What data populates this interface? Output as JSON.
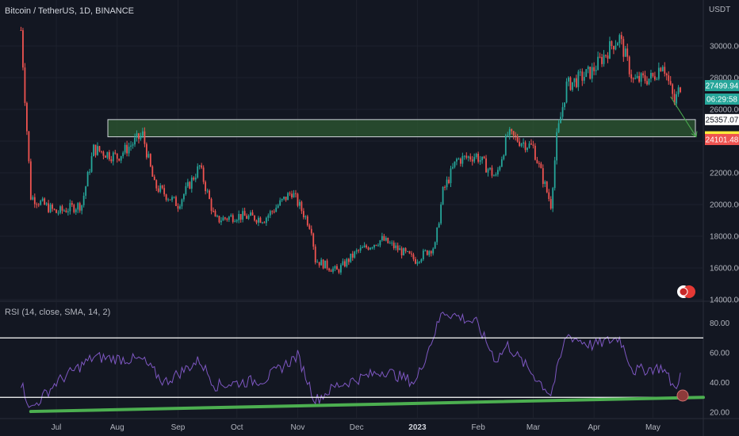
{
  "header": {
    "symbol_title": "Bitcoin / TetherUS, 1D, BINANCE",
    "price_unit": "USDT"
  },
  "rsi_panel": {
    "title": "RSI (14, close, SMA, 14, 2)"
  },
  "price_labels": [
    {
      "text": "27499.94",
      "value": 27499.94,
      "bg": "#26a69a",
      "fg": "#ffffff"
    },
    {
      "text": "06:29:58",
      "value": 26750,
      "bg": "#26a69a",
      "fg": "#ffffff"
    },
    {
      "text": "25357.07",
      "value": 25357.07,
      "bg": "#ffffff",
      "fg": "#131722"
    },
    {
      "text": "24271.76",
      "value": 24271.76,
      "bg": "#ffeb3b",
      "fg": "#131722"
    },
    {
      "text": "24101.48",
      "value": 24101.48,
      "bg": "#ef5350",
      "fg": "#ffffff"
    }
  ],
  "colors": {
    "background": "#131722",
    "grid": "#1e222d",
    "up": "#26a69a",
    "down": "#ef5350",
    "zone_fill": "#2e5a32",
    "zone_border": "#d1d4dc",
    "rsi_line": "#7e57c2",
    "rsi_trend": "#4caf50",
    "level_line": "#ffffff",
    "arrow": "#4caf50"
  },
  "chart_data": [
    {
      "type": "candlestick",
      "title": "Bitcoin / TetherUS, 1D, BINANCE",
      "ylabel": "USDT",
      "ylim": [
        14000,
        32000
      ],
      "y_ticks": [
        "14000.00",
        "16000.00",
        "18000.00",
        "20000.00",
        "22000.00",
        "24000.00",
        "26000.00",
        "28000.00",
        "30000.00"
      ],
      "x_ticks": [
        "Jul",
        "Aug",
        "Sep",
        "Oct",
        "Nov",
        "Dec",
        "2023",
        "Feb",
        "Mar",
        "Apr",
        "May"
      ],
      "x_tick_bold": "2023",
      "approx_daily_closes": [
        {
          "date": "2022-06-13",
          "close": 31000
        },
        {
          "date": "2022-06-18",
          "close": 20500
        },
        {
          "date": "2022-07-01",
          "close": 19500
        },
        {
          "date": "2022-07-14",
          "close": 20000
        },
        {
          "date": "2022-07-20",
          "close": 23500
        },
        {
          "date": "2022-08-01",
          "close": 23000
        },
        {
          "date": "2022-08-14",
          "close": 24400
        },
        {
          "date": "2022-08-20",
          "close": 21200
        },
        {
          "date": "2022-09-01",
          "close": 20000
        },
        {
          "date": "2022-09-12",
          "close": 22400
        },
        {
          "date": "2022-09-20",
          "close": 19000
        },
        {
          "date": "2022-10-01",
          "close": 19300
        },
        {
          "date": "2022-10-15",
          "close": 19100
        },
        {
          "date": "2022-10-29",
          "close": 20800
        },
        {
          "date": "2022-11-08",
          "close": 18500
        },
        {
          "date": "2022-11-10",
          "close": 16500
        },
        {
          "date": "2022-11-21",
          "close": 15800
        },
        {
          "date": "2022-12-01",
          "close": 17000
        },
        {
          "date": "2022-12-14",
          "close": 17800
        },
        {
          "date": "2022-12-31",
          "close": 16500
        },
        {
          "date": "2023-01-10",
          "close": 17400
        },
        {
          "date": "2023-01-14",
          "close": 20800
        },
        {
          "date": "2023-01-21",
          "close": 22800
        },
        {
          "date": "2023-01-31",
          "close": 23100
        },
        {
          "date": "2023-02-10",
          "close": 21700
        },
        {
          "date": "2023-02-16",
          "close": 24400
        },
        {
          "date": "2023-03-01",
          "close": 23600
        },
        {
          "date": "2023-03-10",
          "close": 20000
        },
        {
          "date": "2023-03-13",
          "close": 24200
        },
        {
          "date": "2023-03-18",
          "close": 27500
        },
        {
          "date": "2023-03-31",
          "close": 28400
        },
        {
          "date": "2023-04-11",
          "close": 30200
        },
        {
          "date": "2023-04-14",
          "close": 30500
        },
        {
          "date": "2023-04-21",
          "close": 27800
        },
        {
          "date": "2023-05-01",
          "close": 28000
        },
        {
          "date": "2023-05-06",
          "close": 29000
        },
        {
          "date": "2023-05-12",
          "close": 26400
        },
        {
          "date": "2023-05-15",
          "close": 27499.94
        }
      ],
      "zone": {
        "from": 24271.76,
        "to": 25357.07,
        "start_date": "2022-08-10",
        "end_date": "2023-05-15"
      },
      "projection_arrow": {
        "from_date": "2023-05-10",
        "from_value": 26800,
        "to_date": "2023-05-15",
        "to_value": 24271.76
      }
    },
    {
      "type": "line",
      "title": "RSI (14, close, SMA, 14, 2)",
      "ylim": [
        20,
        90
      ],
      "y_ticks": [
        "20.00",
        "40.00",
        "60.00",
        "80.00"
      ],
      "levels": [
        70,
        30
      ],
      "approx_values": [
        {
          "date": "2022-06-13",
          "value": 40
        },
        {
          "date": "2022-06-18",
          "value": 22
        },
        {
          "date": "2022-07-01",
          "value": 40
        },
        {
          "date": "2022-07-20",
          "value": 57
        },
        {
          "date": "2022-08-14",
          "value": 55
        },
        {
          "date": "2022-08-25",
          "value": 40
        },
        {
          "date": "2022-09-12",
          "value": 55
        },
        {
          "date": "2022-09-20",
          "value": 38
        },
        {
          "date": "2022-10-15",
          "value": 42
        },
        {
          "date": "2022-11-01",
          "value": 58
        },
        {
          "date": "2022-11-10",
          "value": 28
        },
        {
          "date": "2022-11-21",
          "value": 38
        },
        {
          "date": "2022-12-15",
          "value": 48
        },
        {
          "date": "2022-12-31",
          "value": 40
        },
        {
          "date": "2023-01-14",
          "value": 88
        },
        {
          "date": "2023-01-31",
          "value": 80
        },
        {
          "date": "2023-02-10",
          "value": 55
        },
        {
          "date": "2023-02-16",
          "value": 65
        },
        {
          "date": "2023-03-10",
          "value": 32
        },
        {
          "date": "2023-03-18",
          "value": 72
        },
        {
          "date": "2023-03-31",
          "value": 65
        },
        {
          "date": "2023-04-14",
          "value": 70
        },
        {
          "date": "2023-04-21",
          "value": 48
        },
        {
          "date": "2023-05-06",
          "value": 50
        },
        {
          "date": "2023-05-12",
          "value": 36
        },
        {
          "date": "2023-05-15",
          "value": 45
        }
      ],
      "trendline": {
        "from_date": "2022-06-18",
        "from_value": 20.5,
        "to_date": "2023-05-18",
        "to_value": 30
      }
    }
  ]
}
